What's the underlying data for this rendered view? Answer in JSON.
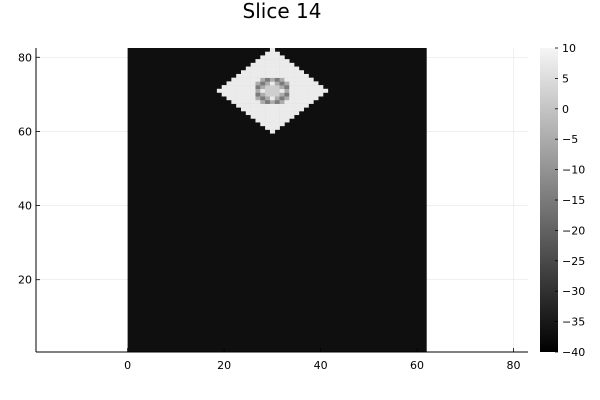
{
  "chart_data": {
    "type": "heatmap",
    "title": "Slice 14",
    "xlabel": "",
    "ylabel": "",
    "colormap": "grayscale",
    "xlim": [
      -19,
      83
    ],
    "ylim": [
      0.5,
      82.5
    ],
    "x_ticks": [
      0,
      20,
      40,
      60,
      80
    ],
    "y_ticks": [
      20,
      40,
      60,
      80
    ],
    "grid": true,
    "colorbar": {
      "min": -40,
      "max": 10,
      "ticks": [
        10,
        5,
        0,
        -5,
        -10,
        -15,
        -20,
        -25,
        -30,
        -35,
        -40
      ]
    },
    "grid_shape": {
      "cols": 62,
      "rows": 82
    },
    "background_value": -37,
    "feature": {
      "shape": "diamond",
      "center": [
        30,
        71
      ],
      "half_width": 11,
      "half_height": 11,
      "value": 8,
      "ring_values": [
        -5,
        -15
      ],
      "ring_radius": 3
    }
  }
}
